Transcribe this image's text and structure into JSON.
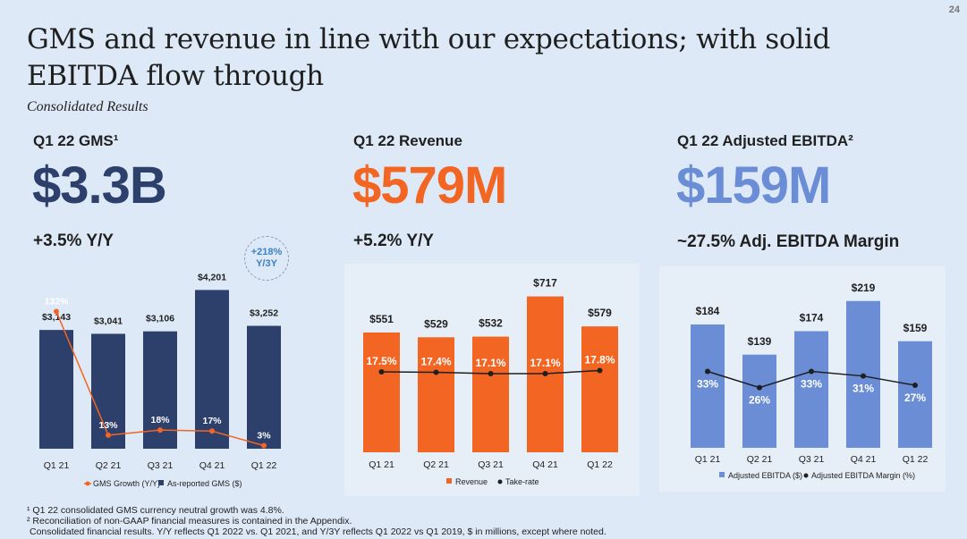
{
  "page_number": "24",
  "title": "GMS and revenue in line with our expectations; with solid EBITDA flow through",
  "subtitle": "Consolidated Results",
  "kpis": {
    "gms": {
      "label": "Q1 22 GMS¹",
      "value": "$3.3B",
      "sub": "+3.5% Y/Y",
      "color": "#2d3f6b"
    },
    "revenue": {
      "label": "Q1 22 Revenue",
      "value": "$579M",
      "sub": "+5.2% Y/Y",
      "color": "#f26522"
    },
    "ebitda": {
      "label": "Q1 22 Adjusted EBITDA²",
      "value": "$159M",
      "sub": "~27.5% Adj. EBITDA Margin",
      "color": "#6b8dd6"
    }
  },
  "badge": {
    "line1": "+218%",
    "line2": "Y/3Y"
  },
  "chart_data": [
    {
      "type": "bar",
      "categories": [
        "Q1 21",
        "Q2 21",
        "Q3 21",
        "Q4 21",
        "Q1 22"
      ],
      "series": [
        {
          "name": "As-reported GMS ($)",
          "values": [
            3143,
            3041,
            3106,
            4201,
            3252
          ],
          "labels": [
            "$3,143",
            "$3,041",
            "$3,106",
            "$4,201",
            "$3,252"
          ],
          "color": "#2d3f6b"
        },
        {
          "name": "GMS Growth (Y/Y)",
          "type": "line",
          "values": [
            132,
            13,
            18,
            17,
            3
          ],
          "labels": [
            "132%",
            "13%",
            "18%",
            "17%",
            "3%"
          ],
          "color": "#f26522"
        }
      ],
      "ylim": [
        0,
        4400
      ],
      "line_ylim": [
        0,
        160
      ],
      "legend": "bottom"
    },
    {
      "type": "bar",
      "categories": [
        "Q1 21",
        "Q2 21",
        "Q3 21",
        "Q4 21",
        "Q1 22"
      ],
      "series": [
        {
          "name": "Revenue",
          "values": [
            551,
            529,
            532,
            717,
            579
          ],
          "labels": [
            "$551",
            "$529",
            "$532",
            "$717",
            "$579"
          ],
          "color": "#f26522"
        },
        {
          "name": "Take-rate",
          "type": "line",
          "values": [
            17.5,
            17.4,
            17.1,
            17.1,
            17.8
          ],
          "labels": [
            "17.5%",
            "17.4%",
            "17.1%",
            "17.1%",
            "17.8%"
          ],
          "color": "#1f1f1f"
        }
      ],
      "ylim": [
        0,
        740
      ],
      "line_ylim": [
        0,
        35
      ],
      "legend": "bottom"
    },
    {
      "type": "bar",
      "categories": [
        "Q1 21",
        "Q2 21",
        "Q3 21",
        "Q4 21",
        "Q1 22"
      ],
      "series": [
        {
          "name": "Adjusted EBITDA ($)",
          "values": [
            184,
            139,
            174,
            219,
            159
          ],
          "labels": [
            "$184",
            "$139",
            "$174",
            "$219",
            "$159"
          ],
          "color": "#6b8dd6"
        },
        {
          "name": "Adjusted EBITDA Margin (%)",
          "type": "line",
          "values": [
            33,
            26,
            33,
            31,
            27
          ],
          "labels": [
            "33%",
            "26%",
            "33%",
            "31%",
            "27%"
          ],
          "color": "#1f1f1f"
        }
      ],
      "ylim": [
        0,
        228
      ],
      "line_ylim": [
        0,
        66
      ],
      "legend": "bottom"
    }
  ],
  "footnotes": [
    "¹ Q1 22 consolidated GMS currency neutral growth was 4.8%.",
    "² Reconciliation of non-GAAP financial measures is contained in the Appendix.",
    "Consolidated financial results. Y/Y reflects Q1 2022 vs. Q1 2021, and Y/3Y reflects Q1 2022 vs Q1 2019, $ in millions, except where noted."
  ]
}
